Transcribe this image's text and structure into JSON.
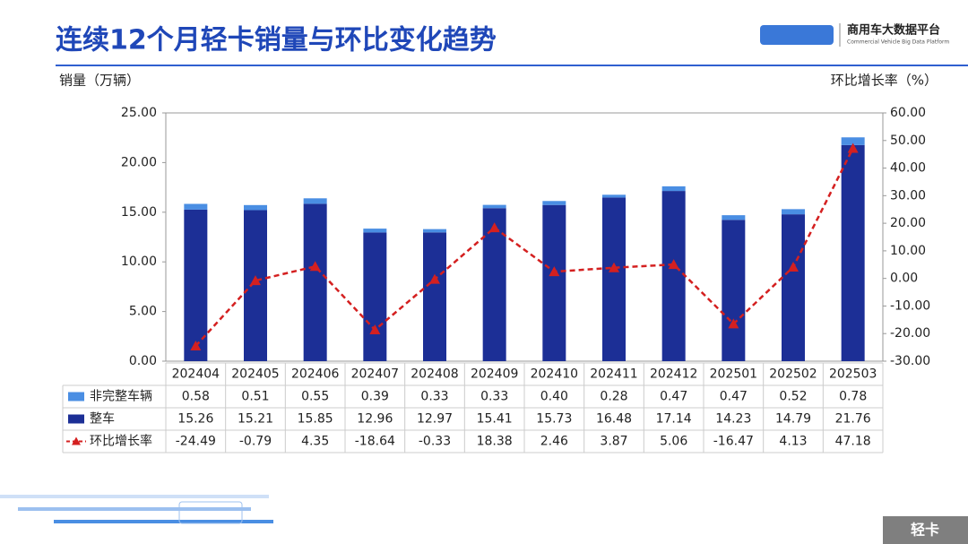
{
  "header": {
    "title": "连续12个月轻卡销量与环比变化趋势",
    "logo_name": "商用车大数据平台",
    "logo_subtitle": "Commercial Vehicle Big Data Platform"
  },
  "footer": {
    "tag": "轻卡"
  },
  "chart_data": {
    "type": "bar",
    "y_label": "销量（万辆）",
    "y2_label": "环比增长率（%）",
    "categories": [
      "202404",
      "202405",
      "202406",
      "202407",
      "202408",
      "202409",
      "202410",
      "202411",
      "202412",
      "202501",
      "202502",
      "202503"
    ],
    "series": [
      {
        "name": "非完整车辆",
        "type": "bar",
        "color": "#4a8ee3",
        "values": [
          0.58,
          0.51,
          0.55,
          0.39,
          0.33,
          0.33,
          0.4,
          0.28,
          0.47,
          0.47,
          0.52,
          0.78
        ],
        "value_labels": [
          "0.58",
          "0.51",
          "0.55",
          "0.39",
          "0.33",
          "0.33",
          "0.40",
          "0.28",
          "0.47",
          "0.47",
          "0.52",
          "0.78"
        ]
      },
      {
        "name": "整车",
        "type": "bar",
        "color": "#1c2f96",
        "values": [
          15.26,
          15.21,
          15.85,
          12.96,
          12.97,
          15.41,
          15.73,
          16.48,
          17.14,
          14.23,
          14.79,
          21.76
        ]
      },
      {
        "name": "环比增长率",
        "type": "line",
        "axis": "y2",
        "color": "#d42020",
        "values": [
          -24.49,
          -0.79,
          4.35,
          -18.64,
          -0.33,
          18.38,
          2.46,
          3.87,
          5.06,
          -16.47,
          4.13,
          47.18
        ]
      }
    ],
    "ylim": [
      0,
      25
    ],
    "yticks": [
      {
        "value": 0,
        "label": "0.00"
      },
      {
        "value": 5,
        "label": "5.00"
      },
      {
        "value": 10,
        "label": "10.00"
      },
      {
        "value": 15,
        "label": "15.00"
      },
      {
        "value": 20,
        "label": "20.00"
      },
      {
        "value": 25,
        "label": "25.00"
      }
    ],
    "y2lim": [
      -30,
      60
    ],
    "y2ticks": [
      {
        "value": -30,
        "label": "-30.00"
      },
      {
        "value": -20,
        "label": "-20.00"
      },
      {
        "value": -10,
        "label": "-10.00"
      },
      {
        "value": 0,
        "label": "0.00"
      },
      {
        "value": 10,
        "label": "10.00"
      },
      {
        "value": 20,
        "label": "20.00"
      },
      {
        "value": 30,
        "label": "30.00"
      },
      {
        "value": 40,
        "label": "40.00"
      },
      {
        "value": 50,
        "label": "50.00"
      },
      {
        "value": 60,
        "label": "60.00"
      }
    ]
  }
}
